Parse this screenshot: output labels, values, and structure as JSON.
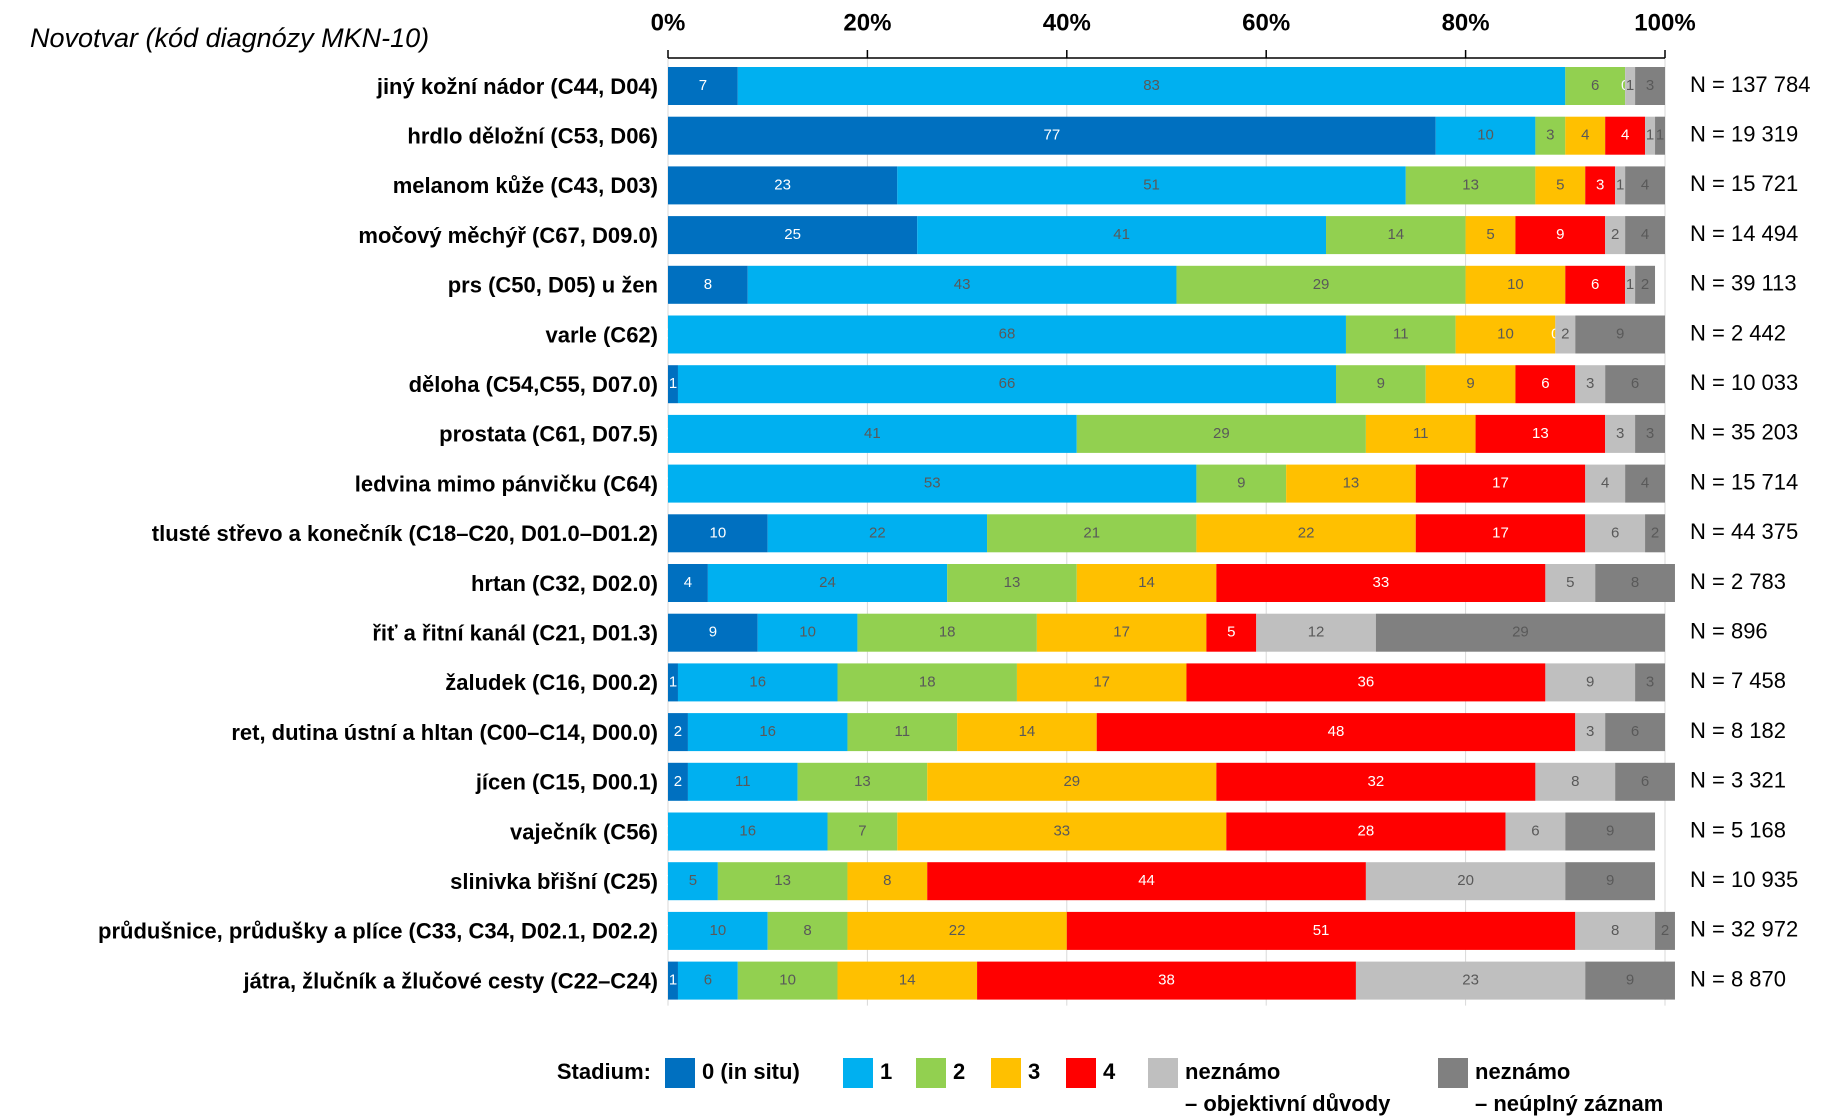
{
  "chart_data": {
    "type": "stacked_bar_horizontal",
    "axis_title": "Novotvar (kód diagnózy MKN-10)",
    "categories": [
      "jiný kožní nádor (C44, D04)",
      "hrdlo děložní (C53, D06)",
      "melanom kůže (C43, D03)",
      "močový měchýř (C67, D09.0)",
      "prs (C50, D05) u žen",
      "varle (C62)",
      "děloha (C54,C55, D07.0)",
      "prostata (C61, D07.5)",
      "ledvina mimo pánvičku (C64)",
      "tlusté střevo a konečník (C18–C20, D01.0–D01.2)",
      "hrtan (C32, D02.0)",
      "řiť a řitní kanál (C21, D01.3)",
      "žaludek (C16, D00.2)",
      "ret, dutina ústní a hltan (C00–C14, D00.0)",
      "jícen (C15, D00.1)",
      "vaječník (C56)",
      "slinivka břišní (C25)",
      "průdušnice, průdušky a plíce (C33, C34, D02.1, D02.2)",
      "játra, žlučník a žlučové cesty (C22–C24)"
    ],
    "category_label_colors": [
      "#000000",
      "#000000",
      "#000000",
      "#000000",
      "#000000",
      "#000000",
      "#000000",
      "#000000",
      "#000000",
      "#000000",
      "#000000",
      "#000000",
      "#000000",
      "#000000",
      "#000000",
      "#000000",
      "#c00000",
      "#000000",
      "#000000"
    ],
    "n_labels": [
      "N = 137 784",
      "N = 19 319",
      "N = 15 721",
      "N = 14 494",
      "N = 39 113",
      "N = 2 442",
      "N = 10 033",
      "N = 35 203",
      "N = 15 714",
      "N = 44 375",
      "N = 2 783",
      "N = 896",
      "N = 7 458",
      "N = 8 182",
      "N = 3 321",
      "N = 5 168",
      "N = 10 935",
      "N = 32 972",
      "N = 8 870"
    ],
    "legend_title": "Stadium:",
    "series": [
      {
        "name": "0 (in situ)",
        "color": "#0070c0",
        "values": [
          7,
          77,
          23,
          25,
          8,
          0,
          1,
          0,
          0,
          10,
          4,
          9,
          1,
          2,
          2,
          0,
          0,
          0,
          1
        ]
      },
      {
        "name": "1",
        "color": "#00b0f0",
        "values": [
          83,
          10,
          51,
          41,
          43,
          68,
          66,
          41,
          53,
          22,
          24,
          10,
          16,
          16,
          11,
          16,
          5,
          10,
          6
        ]
      },
      {
        "name": "2",
        "color": "#92d050",
        "values": [
          6,
          3,
          13,
          14,
          29,
          11,
          9,
          29,
          9,
          21,
          13,
          18,
          18,
          11,
          13,
          7,
          13,
          8,
          10
        ]
      },
      {
        "name": "3",
        "color": "#ffc000",
        "values": [
          0,
          4,
          5,
          5,
          10,
          10,
          9,
          11,
          13,
          22,
          14,
          17,
          17,
          14,
          29,
          33,
          8,
          22,
          14
        ]
      },
      {
        "name": "4",
        "color": "#ff0000",
        "values": [
          0,
          4,
          3,
          9,
          6,
          0,
          6,
          13,
          17,
          17,
          33,
          5,
          36,
          48,
          32,
          28,
          44,
          51,
          38
        ]
      },
      {
        "name": "neznámo\n– objektivní důvody",
        "color": "#bfbfbf",
        "values": [
          1,
          1,
          1,
          2,
          1,
          2,
          3,
          3,
          4,
          6,
          5,
          12,
          9,
          3,
          8,
          6,
          20,
          8,
          23
        ]
      },
      {
        "name": "neznámo\n– neúplný záznam",
        "color": "#808080",
        "values": [
          3,
          1,
          4,
          4,
          2,
          9,
          6,
          3,
          4,
          2,
          8,
          29,
          3,
          6,
          6,
          9,
          9,
          2,
          9
        ]
      }
    ],
    "xlim": [
      0,
      100
    ],
    "xticks": [
      {
        "value": 0,
        "label": "0%"
      },
      {
        "value": 20,
        "label": "20%"
      },
      {
        "value": 40,
        "label": "40%"
      },
      {
        "value": 60,
        "label": "60%"
      },
      {
        "value": 80,
        "label": "80%"
      },
      {
        "value": 100,
        "label": "100%"
      }
    ]
  }
}
